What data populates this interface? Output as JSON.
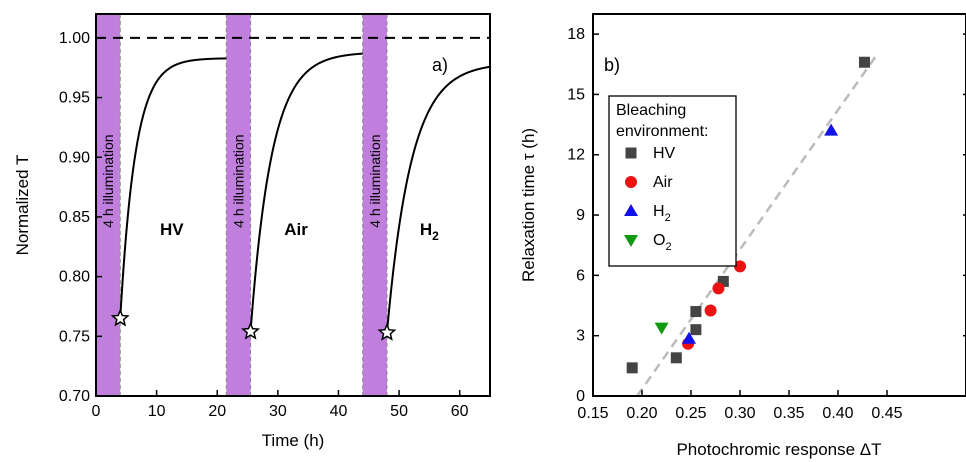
{
  "chart_data": [
    {
      "type": "line",
      "panel_label": "a)",
      "xlabel": "Time (h)",
      "ylabel": "Normalized T",
      "xlim": [
        0,
        65
      ],
      "ylim": [
        0.7,
        1.02
      ],
      "x_ticks": [
        "0",
        "10",
        "20",
        "30",
        "40",
        "50",
        "60"
      ],
      "y_ticks": [
        "0.70",
        "0.75",
        "0.80",
        "0.85",
        "0.90",
        "0.95",
        "1.00"
      ],
      "reference_line": {
        "y": 1.0,
        "style": "dashed"
      },
      "illumination_label": "4 h illumination",
      "illumination_color": "#c07fdc",
      "illumination_bands": [
        [
          0,
          4
        ],
        [
          21.5,
          25.5
        ],
        [
          44,
          48
        ]
      ],
      "region_labels": [
        {
          "x": 12.5,
          "text": "HV",
          "sub": ""
        },
        {
          "x": 33,
          "text": "Air",
          "sub": ""
        },
        {
          "x": 55,
          "text": "H",
          "sub": "2"
        }
      ],
      "series": [
        {
          "x_start": 4,
          "x_end": 21.5,
          "y_start": 0.765,
          "y_end": 0.983,
          "tau_h": 2.5
        },
        {
          "x_start": 25.5,
          "x_end": 44,
          "y_start": 0.754,
          "y_end": 0.988,
          "tau_h": 3.5
        },
        {
          "x_start": 48,
          "x_end": 65,
          "y_start": 0.753,
          "y_end": 0.979,
          "tau_h": 4.0
        }
      ],
      "stars": [
        {
          "x": 4,
          "y": 0.765
        },
        {
          "x": 25.5,
          "y": 0.754
        },
        {
          "x": 48,
          "y": 0.753
        }
      ]
    },
    {
      "type": "scatter",
      "panel_label": "b)",
      "xlabel": "Photochromic response ΔT",
      "ylabel": "Relaxation time τ (h)",
      "xlim": [
        0.15,
        0.5
      ],
      "ylim": [
        0,
        19
      ],
      "x_ticks": [
        "0.15",
        "0.20",
        "0.25",
        "0.30",
        "0.35",
        "0.40",
        "0.45"
      ],
      "y_ticks": [
        "0",
        "3",
        "6",
        "9",
        "12",
        "15",
        "18"
      ],
      "legend_title_lines": [
        "Bleaching",
        "environment:"
      ],
      "fit_line": {
        "x": [
          0.195,
          0.44
        ],
        "y": [
          0,
          17.0
        ],
        "color": "#bbbbbb"
      },
      "series": [
        {
          "name": "HV",
          "sub": "",
          "marker": "square",
          "color": "#444444",
          "points": [
            [
              0.19,
              1.4
            ],
            [
              0.235,
              1.9
            ],
            [
              0.255,
              3.3
            ],
            [
              0.255,
              4.2
            ],
            [
              0.283,
              5.7
            ],
            [
              0.427,
              16.6
            ]
          ]
        },
        {
          "name": "Air",
          "sub": "",
          "marker": "circle",
          "color": "#ee1111",
          "points": [
            [
              0.247,
              2.6
            ],
            [
              0.27,
              4.25
            ],
            [
              0.278,
              5.35
            ],
            [
              0.3,
              6.45
            ]
          ]
        },
        {
          "name": "H",
          "sub": "2",
          "marker": "triangle-up",
          "color": "#1111ee",
          "points": [
            [
              0.248,
              2.85
            ],
            [
              0.393,
              13.2
            ]
          ]
        },
        {
          "name": "O",
          "sub": "2",
          "marker": "triangle-down",
          "color": "#119911",
          "points": [
            [
              0.22,
              3.4
            ]
          ]
        }
      ]
    }
  ]
}
